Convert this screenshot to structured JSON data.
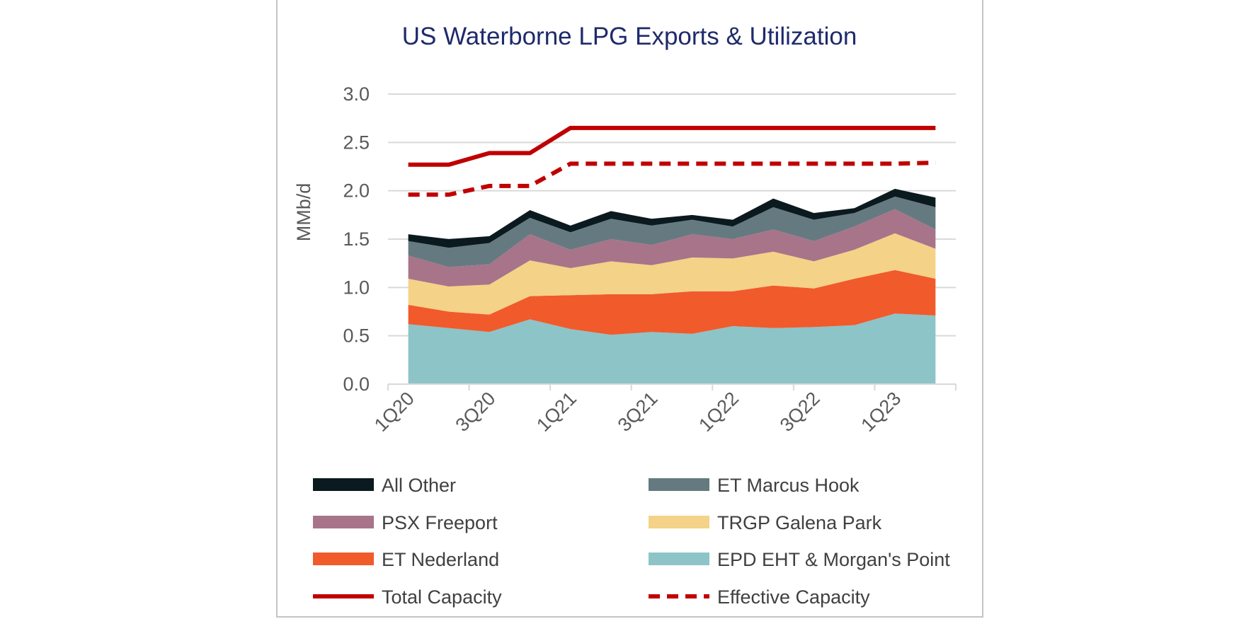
{
  "chart_data": {
    "type": "area",
    "title": "US Waterborne LPG Exports & Utilization",
    "xlabel": "",
    "ylabel": "MMb/d",
    "ylim": [
      0,
      3.0
    ],
    "yticks": [
      "0.0",
      "0.5",
      "1.0",
      "1.5",
      "2.0",
      "2.5",
      "3.0"
    ],
    "ytick_values": [
      0,
      0.5,
      1.0,
      1.5,
      2.0,
      2.5,
      3.0
    ],
    "categories": [
      "1Q20",
      "2Q20",
      "3Q20",
      "4Q20",
      "1Q21",
      "2Q21",
      "3Q21",
      "4Q21",
      "1Q22",
      "2Q22",
      "3Q22",
      "4Q22",
      "1Q23",
      "2Q23"
    ],
    "xtick_labels": [
      "1Q20",
      "3Q20",
      "1Q21",
      "3Q21",
      "1Q22",
      "3Q22",
      "1Q23"
    ],
    "xtick_label_indices": [
      0,
      2,
      4,
      6,
      8,
      10,
      12
    ],
    "grid": true,
    "legend_position": "bottom",
    "stacked_series": [
      {
        "name": "EPD EHT & Morgan's Point",
        "color": "#8cc4c8",
        "values": [
          0.62,
          0.58,
          0.54,
          0.67,
          0.57,
          0.51,
          0.54,
          0.52,
          0.6,
          0.58,
          0.59,
          0.61,
          0.73,
          0.71
        ]
      },
      {
        "name": "ET Nederland",
        "color": "#f15a2b",
        "values": [
          0.2,
          0.17,
          0.18,
          0.24,
          0.35,
          0.42,
          0.39,
          0.44,
          0.36,
          0.44,
          0.4,
          0.48,
          0.45,
          0.38
        ]
      },
      {
        "name": "TRGP Galena Park",
        "color": "#f4d287",
        "values": [
          0.27,
          0.26,
          0.31,
          0.37,
          0.28,
          0.34,
          0.3,
          0.35,
          0.34,
          0.35,
          0.28,
          0.3,
          0.38,
          0.31
        ]
      },
      {
        "name": "PSX Freeport",
        "color": "#a8748a",
        "values": [
          0.24,
          0.2,
          0.21,
          0.27,
          0.19,
          0.23,
          0.21,
          0.24,
          0.2,
          0.23,
          0.21,
          0.24,
          0.25,
          0.2
        ]
      },
      {
        "name": "ET Marcus Hook",
        "color": "#657a80",
        "values": [
          0.15,
          0.2,
          0.22,
          0.17,
          0.18,
          0.21,
          0.2,
          0.15,
          0.13,
          0.23,
          0.22,
          0.14,
          0.13,
          0.23
        ]
      },
      {
        "name": "All Other",
        "color": "#0b1a1e",
        "values": [
          0.07,
          0.09,
          0.07,
          0.08,
          0.07,
          0.08,
          0.07,
          0.05,
          0.07,
          0.09,
          0.07,
          0.05,
          0.08,
          0.1
        ]
      }
    ],
    "line_series": [
      {
        "name": "Total Capacity",
        "color": "#c00000",
        "dash": "solid",
        "values": [
          2.27,
          2.27,
          2.39,
          2.39,
          2.65,
          2.65,
          2.65,
          2.65,
          2.65,
          2.65,
          2.65,
          2.65,
          2.65,
          2.65
        ]
      },
      {
        "name": "Effective Capacity",
        "color": "#c00000",
        "dash": "dashed",
        "values": [
          1.96,
          1.96,
          2.05,
          2.05,
          2.28,
          2.28,
          2.28,
          2.28,
          2.28,
          2.28,
          2.28,
          2.28,
          2.28,
          2.29
        ]
      }
    ],
    "legend_order": [
      "All Other",
      "ET Marcus Hook",
      "PSX Freeport",
      "TRGP Galena Park",
      "ET Nederland",
      "EPD EHT & Morgan's Point",
      "Total Capacity",
      "Effective Capacity"
    ]
  }
}
